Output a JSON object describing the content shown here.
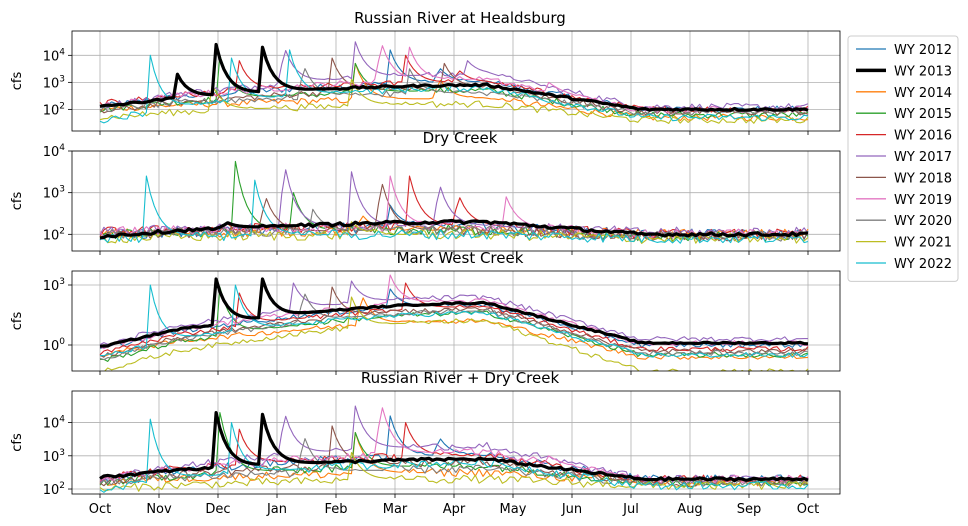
{
  "chart_data": {
    "type": "line",
    "x_ticks": [
      "Oct",
      "Nov",
      "Dec",
      "Jan",
      "Feb",
      "Mar",
      "Apr",
      "May",
      "Jun",
      "Jul",
      "Aug",
      "Sep",
      "Oct"
    ],
    "y_unit": "cfs",
    "legend_placement": "right of top panel",
    "series_names": [
      "WY 2012",
      "WY 2013",
      "WY 2014",
      "WY 2015",
      "WY 2016",
      "WY 2017",
      "WY 2018",
      "WY 2019",
      "WY 2020",
      "WY 2021",
      "WY 2022"
    ],
    "series_colors": [
      "#1f77b4",
      "#000000",
      "#ff7f0e",
      "#2ca02c",
      "#d62728",
      "#9467bd",
      "#8c564b",
      "#e377c2",
      "#7f7f7f",
      "#bcbd22",
      "#17becf"
    ],
    "highlight_series": "WY 2013",
    "grid": true,
    "panels": [
      {
        "title": "Russian River at Healdsburg",
        "ylabel": "cfs",
        "yscale": "log",
        "ylim_exp": [
          1.2,
          4.9
        ],
        "y_tick_exps": [
          2,
          3,
          4
        ],
        "baseline_exp": [
          2.1,
          2.1,
          2.0,
          2.0,
          2.2,
          2.1,
          1.9,
          2.1,
          2.0,
          1.7,
          1.6
        ],
        "wet_exp": [
          3.0,
          2.9,
          2.4,
          2.7,
          3.0,
          3.3,
          2.8,
          3.1,
          2.6,
          2.2,
          2.8
        ],
        "dry_exp": [
          2.0,
          2.0,
          1.7,
          1.8,
          2.0,
          2.1,
          1.9,
          2.0,
          1.9,
          1.6,
          1.7
        ],
        "peaks": [
          {
            "s": 0,
            "d": 150,
            "v": 4.2
          },
          {
            "s": 0,
            "d": 175,
            "v": 3.6
          },
          {
            "s": 1,
            "d": 60,
            "v": 4.4
          },
          {
            "s": 1,
            "d": 84,
            "v": 4.3
          },
          {
            "s": 1,
            "d": 40,
            "v": 3.3
          },
          {
            "s": 2,
            "d": 132,
            "v": 3.7
          },
          {
            "s": 2,
            "d": 175,
            "v": 3.2
          },
          {
            "s": 3,
            "d": 62,
            "v": 4.0
          },
          {
            "s": 3,
            "d": 132,
            "v": 3.7
          },
          {
            "s": 4,
            "d": 72,
            "v": 3.8
          },
          {
            "s": 4,
            "d": 158,
            "v": 4.0
          },
          {
            "s": 4,
            "d": 185,
            "v": 3.5
          },
          {
            "s": 5,
            "d": 95,
            "v": 4.4
          },
          {
            "s": 5,
            "d": 132,
            "v": 4.5
          },
          {
            "s": 5,
            "d": 190,
            "v": 3.8
          },
          {
            "s": 6,
            "d": 120,
            "v": 3.9
          },
          {
            "s": 6,
            "d": 178,
            "v": 3.7
          },
          {
            "s": 7,
            "d": 145,
            "v": 4.6
          },
          {
            "s": 7,
            "d": 160,
            "v": 4.3
          },
          {
            "s": 7,
            "d": 232,
            "v": 3.0
          },
          {
            "s": 8,
            "d": 105,
            "v": 3.7
          },
          {
            "s": 8,
            "d": 160,
            "v": 3.5
          },
          {
            "s": 9,
            "d": 58,
            "v": 2.9
          },
          {
            "s": 9,
            "d": 130,
            "v": 3.1
          },
          {
            "s": 10,
            "d": 26,
            "v": 4.0
          },
          {
            "s": 10,
            "d": 68,
            "v": 3.9
          },
          {
            "s": 10,
            "d": 98,
            "v": 4.2
          }
        ]
      },
      {
        "title": "Dry Creek",
        "ylabel": "cfs",
        "yscale": "log",
        "ylim_exp": [
          1.6,
          4.0
        ],
        "y_tick_exps": [
          2,
          3,
          4
        ],
        "baseline_exp": [
          1.95,
          1.95,
          2.0,
          2.0,
          2.05,
          2.05,
          2.0,
          2.05,
          2.0,
          1.9,
          1.9
        ],
        "wet_exp": [
          2.2,
          2.3,
          2.1,
          2.1,
          2.2,
          2.2,
          2.1,
          2.2,
          2.1,
          2.0,
          2.0
        ],
        "dry_exp": [
          2.0,
          2.0,
          2.0,
          1.95,
          2.0,
          2.05,
          1.95,
          2.0,
          1.95,
          1.9,
          1.9
        ],
        "peaks": [
          {
            "s": 0,
            "d": 150,
            "v": 2.7
          },
          {
            "s": 1,
            "d": 65,
            "v": 2.3
          },
          {
            "s": 2,
            "d": 135,
            "v": 2.5
          },
          {
            "s": 3,
            "d": 70,
            "v": 3.75
          },
          {
            "s": 3,
            "d": 100,
            "v": 3.0
          },
          {
            "s": 4,
            "d": 160,
            "v": 3.4
          },
          {
            "s": 4,
            "d": 185,
            "v": 3.0
          },
          {
            "s": 5,
            "d": 95,
            "v": 3.8
          },
          {
            "s": 5,
            "d": 130,
            "v": 3.5
          },
          {
            "s": 5,
            "d": 175,
            "v": 3.3
          },
          {
            "s": 6,
            "d": 85,
            "v": 3.0
          },
          {
            "s": 6,
            "d": 145,
            "v": 3.4
          },
          {
            "s": 7,
            "d": 150,
            "v": 3.4
          },
          {
            "s": 7,
            "d": 210,
            "v": 2.9
          },
          {
            "s": 8,
            "d": 110,
            "v": 2.6
          },
          {
            "s": 9,
            "d": 130,
            "v": 2.3
          },
          {
            "s": 10,
            "d": 24,
            "v": 3.4
          },
          {
            "s": 10,
            "d": 80,
            "v": 3.3
          }
        ]
      },
      {
        "title": "Mark West Creek",
        "ylabel": "cfs",
        "yscale": "log",
        "ylim_exp": [
          -1.3,
          3.7
        ],
        "y_tick_exps": [
          0,
          3
        ],
        "baseline_exp": [
          -0.2,
          -0.1,
          -0.5,
          -0.8,
          -0.4,
          0.0,
          -0.6,
          -0.2,
          -0.7,
          -1.3,
          -0.6
        ],
        "wet_exp": [
          2.0,
          2.1,
          1.2,
          1.6,
          1.9,
          2.4,
          1.8,
          2.2,
          1.7,
          1.2,
          1.6
        ],
        "dry_exp": [
          0.0,
          0.1,
          -0.6,
          -0.5,
          -0.2,
          0.3,
          -0.3,
          0.1,
          -0.4,
          -1.3,
          -0.5
        ],
        "peaks": [
          {
            "s": 0,
            "d": 150,
            "v": 2.8
          },
          {
            "s": 1,
            "d": 60,
            "v": 3.3
          },
          {
            "s": 1,
            "d": 84,
            "v": 3.3
          },
          {
            "s": 2,
            "d": 135,
            "v": 2.6
          },
          {
            "s": 3,
            "d": 62,
            "v": 2.9
          },
          {
            "s": 4,
            "d": 72,
            "v": 2.6
          },
          {
            "s": 4,
            "d": 158,
            "v": 3.1
          },
          {
            "s": 5,
            "d": 100,
            "v": 3.1
          },
          {
            "s": 5,
            "d": 130,
            "v": 3.2
          },
          {
            "s": 6,
            "d": 120,
            "v": 2.9
          },
          {
            "s": 7,
            "d": 150,
            "v": 3.5
          },
          {
            "s": 8,
            "d": 105,
            "v": 2.8
          },
          {
            "s": 9,
            "d": 130,
            "v": 2.4
          },
          {
            "s": 10,
            "d": 26,
            "v": 3.0
          },
          {
            "s": 10,
            "d": 70,
            "v": 3.0
          }
        ]
      },
      {
        "title": "Russian River + Dry Creek",
        "ylabel": "cfs",
        "yscale": "log",
        "ylim_exp": [
          1.85,
          4.95
        ],
        "y_tick_exps": [
          2,
          3,
          4
        ],
        "baseline_exp": [
          2.3,
          2.35,
          2.2,
          2.2,
          2.35,
          2.3,
          2.2,
          2.3,
          2.2,
          2.0,
          2.0
        ],
        "wet_exp": [
          3.0,
          2.9,
          2.5,
          2.7,
          3.0,
          3.3,
          2.8,
          3.1,
          2.6,
          2.3,
          2.8
        ],
        "dry_exp": [
          2.3,
          2.3,
          2.2,
          2.2,
          2.3,
          2.3,
          2.2,
          2.3,
          2.2,
          2.1,
          2.1
        ],
        "peaks": [
          {
            "s": 0,
            "d": 150,
            "v": 4.2
          },
          {
            "s": 0,
            "d": 175,
            "v": 3.6
          },
          {
            "s": 1,
            "d": 60,
            "v": 4.3
          },
          {
            "s": 1,
            "d": 84,
            "v": 4.25
          },
          {
            "s": 2,
            "d": 132,
            "v": 3.7
          },
          {
            "s": 3,
            "d": 62,
            "v": 4.3
          },
          {
            "s": 3,
            "d": 132,
            "v": 3.7
          },
          {
            "s": 4,
            "d": 72,
            "v": 3.8
          },
          {
            "s": 4,
            "d": 158,
            "v": 4.0
          },
          {
            "s": 5,
            "d": 95,
            "v": 4.4
          },
          {
            "s": 5,
            "d": 132,
            "v": 4.5
          },
          {
            "s": 6,
            "d": 120,
            "v": 3.9
          },
          {
            "s": 7,
            "d": 145,
            "v": 4.7
          },
          {
            "s": 7,
            "d": 232,
            "v": 3.0
          },
          {
            "s": 8,
            "d": 105,
            "v": 3.7
          },
          {
            "s": 9,
            "d": 130,
            "v": 3.1
          },
          {
            "s": 10,
            "d": 26,
            "v": 4.1
          },
          {
            "s": 10,
            "d": 68,
            "v": 4.0
          }
        ]
      }
    ]
  }
}
